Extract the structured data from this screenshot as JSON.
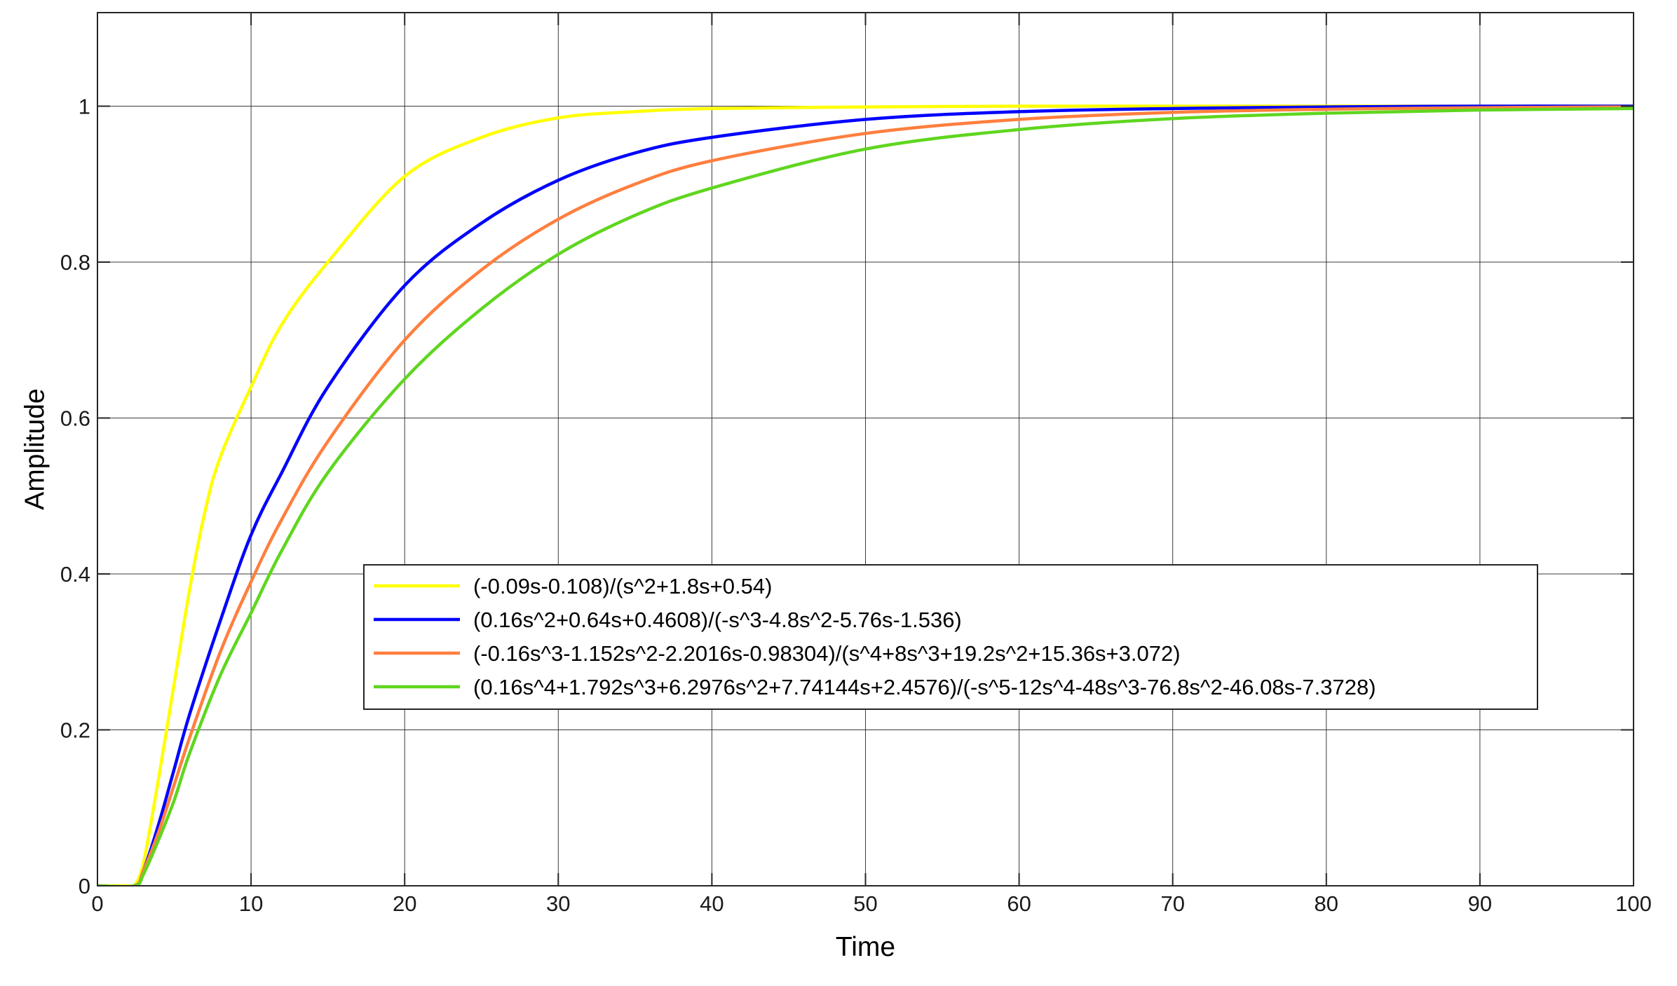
{
  "chart_data": {
    "type": "line",
    "xlabel": "Time",
    "ylabel": "Amplitude",
    "xlim": [
      0,
      100
    ],
    "ylim": [
      0,
      1.12
    ],
    "xticks": [
      0,
      10,
      20,
      30,
      40,
      50,
      60,
      70,
      80,
      90,
      100
    ],
    "yticks": [
      0,
      0.2,
      0.4,
      0.6,
      0.8,
      1
    ],
    "xtick_labels": [
      "0",
      "10",
      "20",
      "30",
      "40",
      "50",
      "60",
      "70",
      "80",
      "90",
      "100"
    ],
    "ytick_labels": [
      "0",
      "0.2",
      "0.4",
      "0.6",
      "0.8",
      "1"
    ],
    "grid": true,
    "legend_position": "lower-center",
    "series": [
      {
        "name": "(-0.09s-0.108)/(s^2+1.8s+0.54)",
        "color": "#ffff00",
        "x": [
          0,
          2,
          2.4,
          3,
          4,
          5,
          6,
          7,
          8,
          10,
          12,
          15,
          20,
          25,
          30,
          35,
          40,
          50,
          60,
          70,
          80,
          90,
          100
        ],
        "y": [
          0,
          0,
          0,
          0.03,
          0.14,
          0.26,
          0.38,
          0.48,
          0.55,
          0.64,
          0.72,
          0.8,
          0.91,
          0.96,
          0.985,
          0.993,
          0.997,
          0.999,
          1,
          1,
          1,
          1,
          1
        ]
      },
      {
        "name": "(0.16s^2+0.64s+0.4608)/(-s^3-4.8s^2-5.76s-1.536)",
        "color": "#0000ff",
        "x": [
          0,
          2.4,
          3,
          4,
          5,
          6,
          8,
          10,
          12,
          15,
          20,
          25,
          30,
          35,
          40,
          50,
          60,
          70,
          80,
          90,
          100
        ],
        "y": [
          0,
          0,
          0.02,
          0.08,
          0.15,
          0.22,
          0.34,
          0.45,
          0.53,
          0.64,
          0.77,
          0.85,
          0.905,
          0.94,
          0.96,
          0.983,
          0.993,
          0.997,
          0.999,
          1,
          1
        ]
      },
      {
        "name": "(-0.16s^3-1.152s^2-2.2016s-0.98304)/(s^4+8s^3+19.2s^2+15.36s+3.072)",
        "color": "#ff7f3f",
        "x": [
          0,
          2.4,
          3,
          4,
          5,
          6,
          8,
          10,
          12,
          15,
          20,
          25,
          30,
          35,
          40,
          50,
          60,
          70,
          80,
          90,
          100
        ],
        "y": [
          0,
          0,
          0.02,
          0.07,
          0.13,
          0.19,
          0.3,
          0.39,
          0.47,
          0.57,
          0.7,
          0.79,
          0.855,
          0.9,
          0.93,
          0.965,
          0.983,
          0.992,
          0.996,
          0.998,
          0.999
        ]
      },
      {
        "name": "(0.16s^4+1.792s^3+6.2976s^2+7.74144s+2.4576)/(-s^5-12s^4-48s^3-76.8s^2-46.08s-7.3728)",
        "color": "#5fd61f",
        "x": [
          0,
          2.4,
          3,
          4,
          5,
          6,
          8,
          10,
          12,
          15,
          20,
          25,
          30,
          35,
          40,
          50,
          60,
          70,
          80,
          90,
          100
        ],
        "y": [
          0,
          0,
          0.015,
          0.06,
          0.11,
          0.17,
          0.27,
          0.35,
          0.43,
          0.53,
          0.65,
          0.74,
          0.81,
          0.86,
          0.895,
          0.945,
          0.97,
          0.984,
          0.991,
          0.995,
          0.997
        ]
      }
    ]
  }
}
